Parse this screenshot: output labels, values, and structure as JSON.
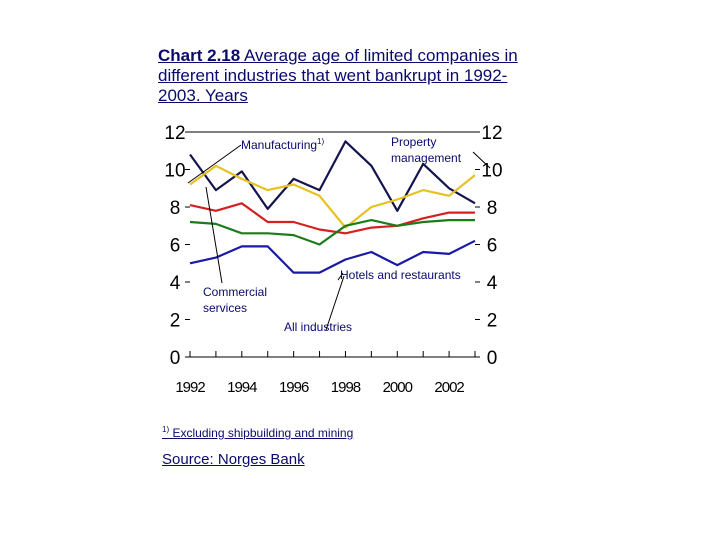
{
  "title": {
    "bold": "Chart 2.18",
    "text": " Average age of limited companies in different industries that went bankrupt in 1992-2003.",
    "unit": "Years"
  },
  "footnote": {
    "marker": "1)",
    "text": "Excluding shipbuilding and mining"
  },
  "source": "Source: Norges Bank",
  "chart_data": {
    "type": "line",
    "x": [
      1992,
      1993,
      1994,
      1995,
      1996,
      1997,
      1998,
      1999,
      2000,
      2001,
      2002,
      2003
    ],
    "xticks": [
      "1992",
      "1994",
      "1996",
      "1998",
      "2000",
      "2002"
    ],
    "yticks": [
      "0",
      "2",
      "4",
      "6",
      "8",
      "10",
      "12"
    ],
    "ylim": [
      0,
      12
    ],
    "grid": false,
    "series": [
      {
        "name": "Property management",
        "color": "#14144e",
        "values": [
          10.8,
          8.9,
          9.9,
          7.9,
          9.5,
          8.9,
          11.5,
          10.2,
          7.8,
          10.3,
          9.0,
          8.2
        ]
      },
      {
        "name": "Manufacturing",
        "color": "#e6c21e",
        "values": [
          9.2,
          10.2,
          9.5,
          8.9,
          9.2,
          8.6,
          6.9,
          8.0,
          8.4,
          8.9,
          8.6,
          9.7
        ]
      },
      {
        "name": "Commercial services",
        "color": "#d42020",
        "values": [
          8.1,
          7.8,
          8.2,
          7.2,
          7.2,
          6.8,
          6.6,
          6.9,
          7.0,
          7.4,
          7.7,
          7.7
        ]
      },
      {
        "name": "All industries",
        "color": "#1c7c1c",
        "values": [
          7.2,
          7.1,
          6.6,
          6.6,
          6.5,
          6.0,
          7.0,
          7.3,
          7.0,
          7.2,
          7.3,
          7.3
        ]
      },
      {
        "name": "Hotels and restaurants",
        "color": "#1a1aa8",
        "values": [
          5.0,
          5.3,
          5.9,
          5.9,
          4.5,
          4.5,
          5.2,
          5.6,
          4.9,
          5.6,
          5.5,
          6.2
        ]
      }
    ],
    "labels": {
      "manufacturing": "Manufacturing",
      "manufacturing_sup": "1)",
      "property": [
        "Property",
        "management"
      ],
      "hotels": "Hotels and restaurants",
      "commercial": [
        "Commercial",
        "services"
      ],
      "all": "All industries"
    }
  }
}
